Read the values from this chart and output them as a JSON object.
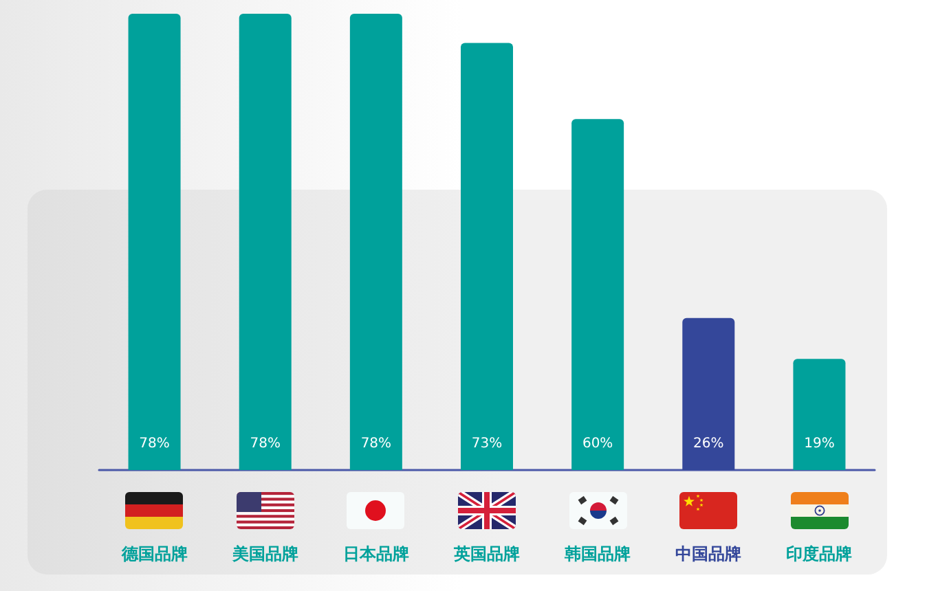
{
  "chart_data": {
    "type": "bar",
    "categories": [
      "德国品牌",
      "美国品牌",
      "日本品牌",
      "英国品牌",
      "韩国品牌",
      "中国品牌",
      "印度品牌"
    ],
    "values": [
      78,
      78,
      78,
      73,
      60,
      26,
      19
    ],
    "colors": [
      "#00a19b",
      "#00a19b",
      "#00a19b",
      "#00a19b",
      "#00a19b",
      "#34479a",
      "#00a19b"
    ],
    "value_labels": [
      "78%",
      "78%",
      "78%",
      "73%",
      "60%",
      "26%",
      "19%"
    ]
  }
}
